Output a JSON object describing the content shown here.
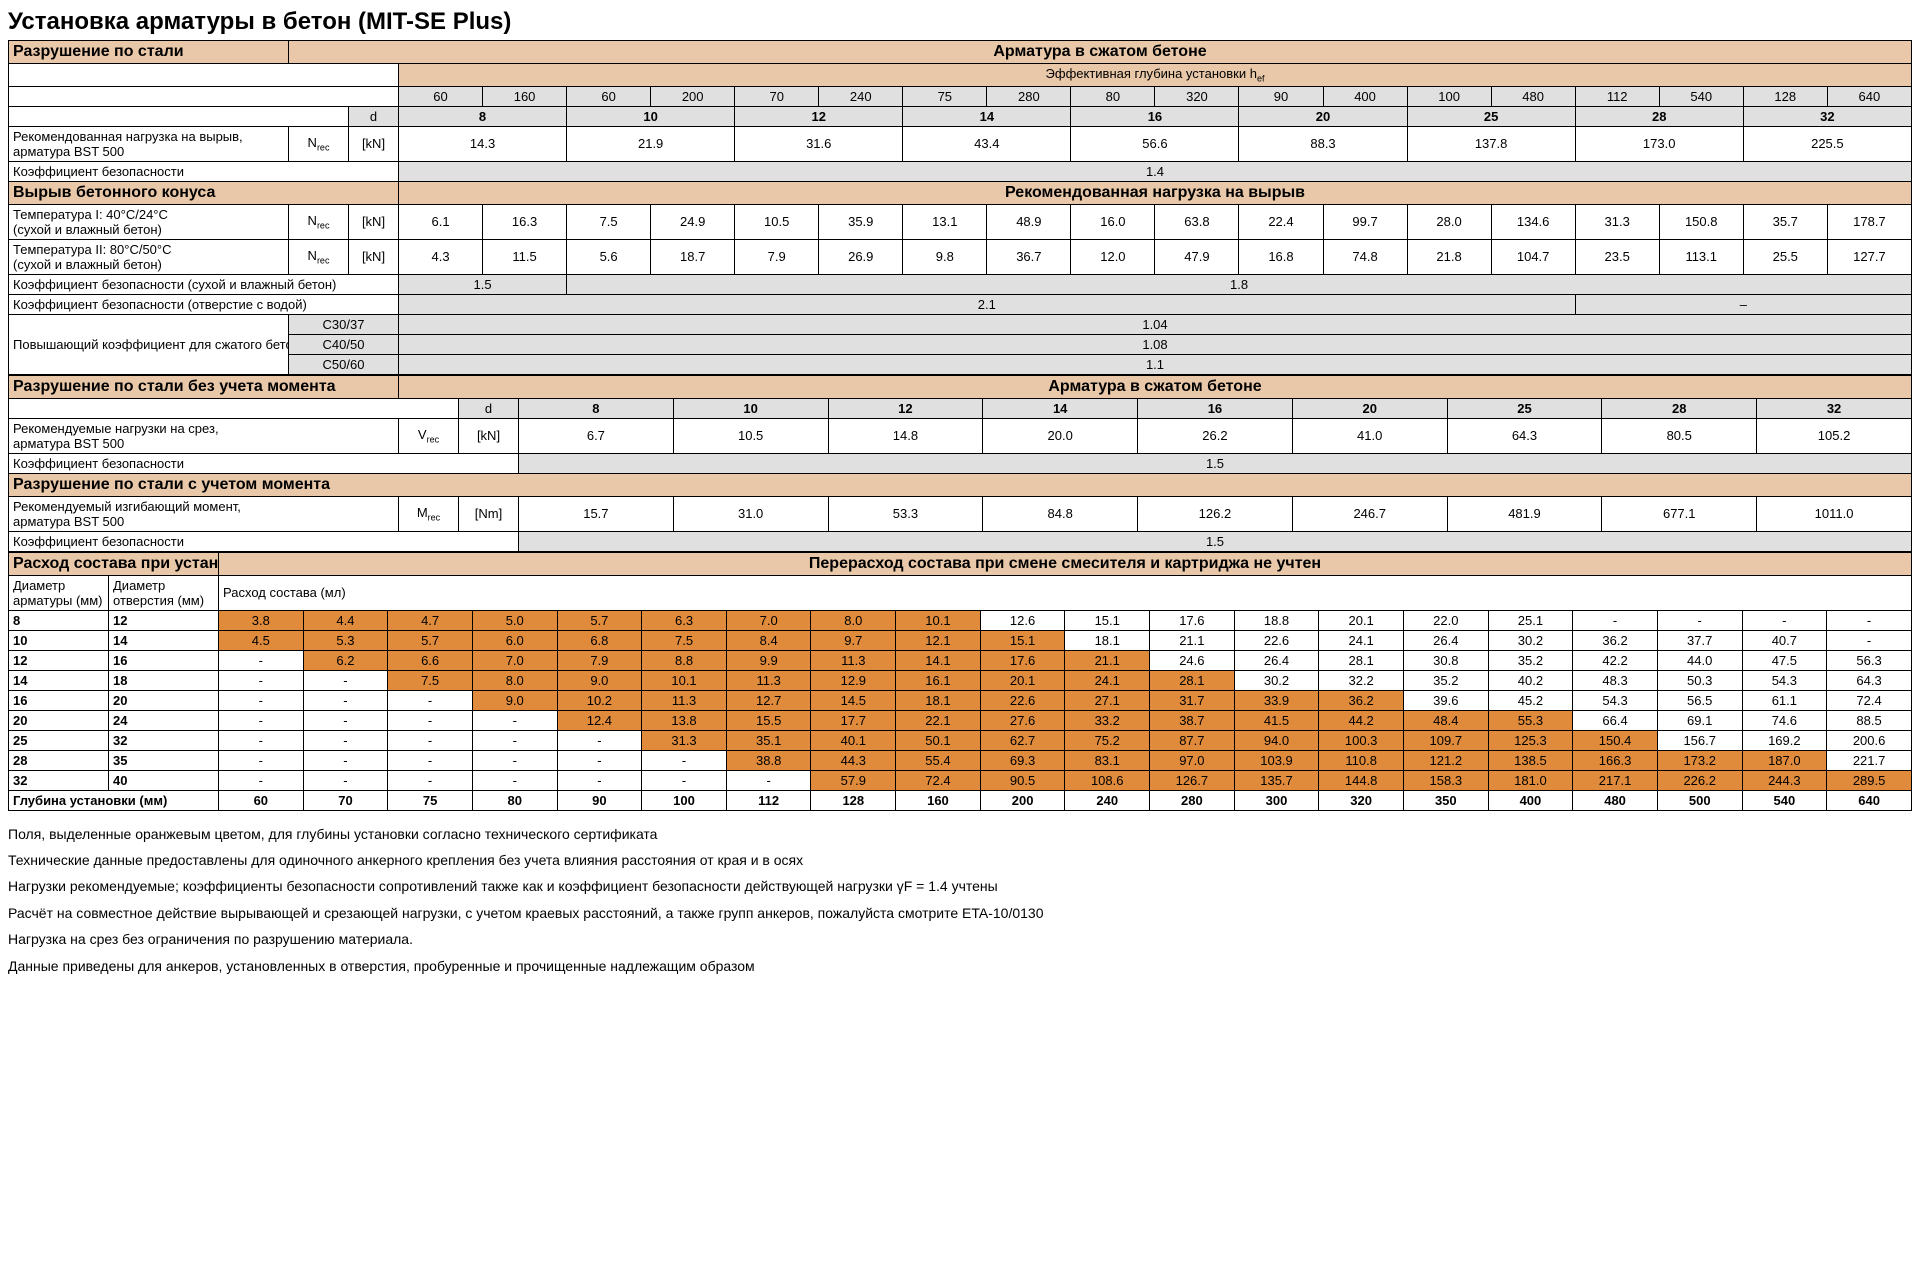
{
  "title": "Установка арматуры в бетон (MIT-SE Plus)",
  "section1": {
    "header": "Разрушение по стали",
    "right_header": "Арматура в сжатом бетоне",
    "depth_label": "Эффективная глубина установки h",
    "depth_sub": "ef",
    "depths": [
      "60",
      "160",
      "60",
      "200",
      "70",
      "240",
      "75",
      "280",
      "80",
      "320",
      "90",
      "400",
      "100",
      "480",
      "112",
      "540",
      "128",
      "640"
    ],
    "d_label": "d",
    "diameters": [
      "8",
      "10",
      "12",
      "14",
      "16",
      "20",
      "25",
      "28",
      "32"
    ],
    "row1_label": "Рекомендованная нагрузка на вырыв,\nарматура BST 500",
    "row1_sym": "N",
    "row1_sub": "rec",
    "row1_unit": "[kN]",
    "row1_vals": [
      "14.3",
      "21.9",
      "31.6",
      "43.4",
      "56.6",
      "88.3",
      "137.8",
      "173.0",
      "225.5"
    ],
    "safety1_label": "Коэффициент безопасности",
    "safety1_val": "1.4"
  },
  "section2": {
    "header": "Вырыв бетонного конуса",
    "right_header": "Рекомендованная нагрузка на вырыв",
    "temp1_label": "Температура I: 40°C/24°C\n(сухой и влажный бетон)",
    "temp1_sym": "N",
    "temp1_sub": "rec",
    "temp1_unit": "[kN]",
    "temp1_vals": [
      "6.1",
      "16.3",
      "7.5",
      "24.9",
      "10.5",
      "35.9",
      "13.1",
      "48.9",
      "16.0",
      "63.8",
      "22.4",
      "99.7",
      "28.0",
      "134.6",
      "31.3",
      "150.8",
      "35.7",
      "178.7"
    ],
    "temp2_label": "Температура II: 80°C/50°C\n(сухой и влажный бетон)",
    "temp2_sym": "N",
    "temp2_sub": "rec",
    "temp2_unit": "[kN]",
    "temp2_vals": [
      "4.3",
      "11.5",
      "5.6",
      "18.7",
      "7.9",
      "26.9",
      "9.8",
      "36.7",
      "12.0",
      "47.9",
      "16.8",
      "74.8",
      "21.8",
      "104.7",
      "23.5",
      "113.1",
      "25.5",
      "127.7"
    ],
    "safety_dry_label": "Коэффициент безопасности (сухой и влажный бетон)",
    "safety_dry_vals": [
      "1.5",
      "1.8"
    ],
    "safety_water_label": "Коэффициент безопасности (отверстие с водой)",
    "safety_water_vals": [
      "2.1",
      "–"
    ],
    "boost_label": "Повышающий коэффициент для сжатого бетона",
    "boost_rows": [
      {
        "c": "C30/37",
        "v": "1.04"
      },
      {
        "c": "C40/50",
        "v": "1.08"
      },
      {
        "c": "C50/60",
        "v": "1.1"
      }
    ]
  },
  "section3": {
    "header": "Разрушение по стали без учета момента",
    "right_header": "Арматура в сжатом бетоне",
    "d_label": "d",
    "diameters": [
      "8",
      "10",
      "12",
      "14",
      "16",
      "20",
      "25",
      "28",
      "32"
    ],
    "shear_label": "Рекомендуемые нагрузки на срез,\nарматура BST 500",
    "shear_sym": "V",
    "shear_sub": "rec",
    "shear_unit": "[kN]",
    "shear_vals": [
      "6.7",
      "10.5",
      "14.8",
      "20.0",
      "26.2",
      "41.0",
      "64.3",
      "80.5",
      "105.2"
    ],
    "safety_label": "Коэффициент безопасности",
    "safety_val": "1.5"
  },
  "section4": {
    "header": "Разрушение по стали с учетом момента",
    "moment_label": "Рекомендуемый изгибающий момент,\nарматура BST 500",
    "moment_sym": "M",
    "moment_sub": "rec",
    "moment_unit": "[Nm]",
    "moment_vals": [
      "15.7",
      "31.0",
      "53.3",
      "84.8",
      "126.2",
      "246.7",
      "481.9",
      "677.1",
      "1011.0"
    ],
    "safety_label": "Коэффициент безопасности",
    "safety_val": "1.5"
  },
  "section5": {
    "header": "Расход состава при установке арматуры",
    "right_header": "Перерасход состава при смене смесителя и картриджа не учтен",
    "col1": "Диаметр\nарматуры (мм)",
    "col2": "Диаметр\nотверстия (мм)",
    "col3": "Расход состава (мл)",
    "depth_row_label": "Глубина установки (мм)",
    "depths": [
      "60",
      "70",
      "75",
      "80",
      "90",
      "100",
      "112",
      "128",
      "160",
      "200",
      "240",
      "280",
      "300",
      "320",
      "350",
      "400",
      "480",
      "500",
      "540",
      "640"
    ],
    "rows": [
      {
        "d": "8",
        "h": "12",
        "c": [
          "3.8",
          "4.4",
          "4.7",
          "5.0",
          "5.7",
          "6.3",
          "7.0",
          "8.0",
          "10.1",
          "12.6",
          "15.1",
          "17.6",
          "18.8",
          "20.1",
          "22.0",
          "25.1",
          "-",
          "-",
          "-",
          "-"
        ],
        "hl": 9
      },
      {
        "d": "10",
        "h": "14",
        "c": [
          "4.5",
          "5.3",
          "5.7",
          "6.0",
          "6.8",
          "7.5",
          "8.4",
          "9.7",
          "12.1",
          "15.1",
          "18.1",
          "21.1",
          "22.6",
          "24.1",
          "26.4",
          "30.2",
          "36.2",
          "37.7",
          "40.7",
          "-"
        ],
        "hl": 10
      },
      {
        "d": "12",
        "h": "16",
        "c": [
          "-",
          "6.2",
          "6.6",
          "7.0",
          "7.9",
          "8.8",
          "9.9",
          "11.3",
          "14.1",
          "17.6",
          "21.1",
          "24.6",
          "26.4",
          "28.1",
          "30.8",
          "35.2",
          "42.2",
          "44.0",
          "47.5",
          "56.3"
        ],
        "hl": 11
      },
      {
        "d": "14",
        "h": "18",
        "c": [
          "-",
          "-",
          "7.5",
          "8.0",
          "9.0",
          "10.1",
          "11.3",
          "12.9",
          "16.1",
          "20.1",
          "24.1",
          "28.1",
          "30.2",
          "32.2",
          "35.2",
          "40.2",
          "48.3",
          "50.3",
          "54.3",
          "64.3"
        ],
        "hl": 12
      },
      {
        "d": "16",
        "h": "20",
        "c": [
          "-",
          "-",
          "-",
          "9.0",
          "10.2",
          "11.3",
          "12.7",
          "14.5",
          "18.1",
          "22.6",
          "27.1",
          "31.7",
          "33.9",
          "36.2",
          "39.6",
          "45.2",
          "54.3",
          "56.5",
          "61.1",
          "72.4"
        ],
        "hl": 14
      },
      {
        "d": "20",
        "h": "24",
        "c": [
          "-",
          "-",
          "-",
          "-",
          "12.4",
          "13.8",
          "15.5",
          "17.7",
          "22.1",
          "27.6",
          "33.2",
          "38.7",
          "41.5",
          "44.2",
          "48.4",
          "55.3",
          "66.4",
          "69.1",
          "74.6",
          "88.5"
        ],
        "hl": 16
      },
      {
        "d": "25",
        "h": "32",
        "c": [
          "-",
          "-",
          "-",
          "-",
          "-",
          "31.3",
          "35.1",
          "40.1",
          "50.1",
          "62.7",
          "75.2",
          "87.7",
          "94.0",
          "100.3",
          "109.7",
          "125.3",
          "150.4",
          "156.7",
          "169.2",
          "200.6"
        ],
        "hl": 17
      },
      {
        "d": "28",
        "h": "35",
        "c": [
          "-",
          "-",
          "-",
          "-",
          "-",
          "-",
          "38.8",
          "44.3",
          "55.4",
          "69.3",
          "83.1",
          "97.0",
          "103.9",
          "110.8",
          "121.2",
          "138.5",
          "166.3",
          "173.2",
          "187.0",
          "221.7"
        ],
        "hl": 19
      },
      {
        "d": "32",
        "h": "40",
        "c": [
          "-",
          "-",
          "-",
          "-",
          "-",
          "-",
          "-",
          "57.9",
          "72.4",
          "90.5",
          "108.6",
          "126.7",
          "135.7",
          "144.8",
          "158.3",
          "181.0",
          "217.1",
          "226.2",
          "244.3",
          "289.5"
        ],
        "hl": 20
      }
    ]
  },
  "notes": [
    "Поля, выделенные оранжевым цветом, для глубины установки согласно технического сертификата",
    "Технические данные предоставлены для одиночного анкерного крепления без учета влияния расстояния от края и в осях",
    "Нагрузки рекомендуемые; коэффициенты безопасности сопротивлений также как и коэффициент безопасности действующей нагрузки γF  = 1.4 учтены",
    "Расчёт на совместное действие вырывающей и срезающей нагрузки, с учетом краевых расстояний, а также групп анкеров, пожалуйста смотрите ETA-10/0130",
    "Нагрузка на срез без ограничения по разрушению материала.",
    "Данные приведены для анкеров, установленных в отверстия, пробуренные и прочищенные надлежащим образом"
  ]
}
